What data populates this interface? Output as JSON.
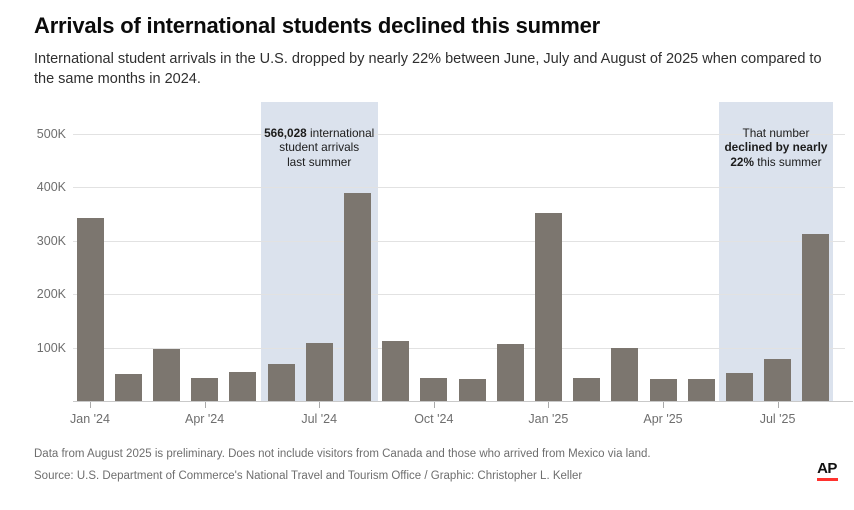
{
  "header": {
    "title": "Arrivals of international students declined this summer",
    "subtitle": "International student arrivals in the U.S. dropped by nearly 22% between June, July and August of 2025 when compared to the same months in 2024."
  },
  "chart_data": {
    "type": "bar",
    "title": "Arrivals of international students declined this summer",
    "xlabel": "",
    "ylabel": "International student arrivals",
    "categories": [
      "Jan '24",
      "Feb '24",
      "Mar '24",
      "Apr '24",
      "May '24",
      "Jun '24",
      "Jul '24",
      "Aug '24",
      "Sep '24",
      "Oct '24",
      "Nov '24",
      "Dec '24",
      "Jan '25",
      "Feb '25",
      "Mar '25",
      "Apr '25",
      "May '25",
      "Jun '25",
      "Jul '25",
      "Aug '25"
    ],
    "values": [
      342000,
      50000,
      98000,
      43000,
      55000,
      69000,
      108000,
      389000,
      113000,
      43000,
      41000,
      107000,
      352000,
      43000,
      99000,
      41000,
      42000,
      53000,
      78000,
      312000
    ],
    "ylim": [
      0,
      550000
    ],
    "grid": true,
    "legend": "none",
    "yticks": [
      {
        "value": 100000,
        "label": "100K"
      },
      {
        "value": 200000,
        "label": "200K"
      },
      {
        "value": 300000,
        "label": "300K"
      },
      {
        "value": 400000,
        "label": "400K"
      },
      {
        "value": 500000,
        "label": "500K"
      }
    ],
    "xticks": [
      {
        "index": 0,
        "label": "Jan '24"
      },
      {
        "index": 3,
        "label": "Apr '24"
      },
      {
        "index": 6,
        "label": "Jul '24"
      },
      {
        "index": 9,
        "label": "Oct '24"
      },
      {
        "index": 12,
        "label": "Jan '25"
      },
      {
        "index": 15,
        "label": "Apr '25"
      },
      {
        "index": 18,
        "label": "Jul '25"
      }
    ],
    "highlights": [
      {
        "name": "summer-2024",
        "start_index": 5,
        "end_index": 7,
        "total": "566,028",
        "annotation_lines": [
          [
            {
              "t": "566,028",
              "b": true
            },
            {
              "t": " international",
              "b": false
            }
          ],
          [
            {
              "t": "student arrivals",
              "b": false
            }
          ],
          [
            {
              "t": "last summer",
              "b": false
            }
          ]
        ]
      },
      {
        "name": "summer-2025",
        "start_index": 17,
        "end_index": 19,
        "total": "",
        "annotation_lines": [
          [
            {
              "t": "That number",
              "b": false
            }
          ],
          [
            {
              "t": "declined by nearly",
              "b": true
            }
          ],
          [
            {
              "t": "22%",
              "b": true
            },
            {
              "t": " this summer",
              "b": false
            }
          ]
        ]
      }
    ]
  },
  "colors": {
    "bar": "#7c766f",
    "highlight_band": "#dbe2ed",
    "gridline": "#e2e2e2",
    "baseline": "#c9c9c9",
    "axis_text": "#6e6e6e",
    "annotation_text": "#1c1c1c",
    "ap_red": "#ff322e"
  },
  "footer": {
    "note": "Data from August 2025 is preliminary. Does not include visitors from Canada and those who arrived from Mexico via land.",
    "source": "Source: U.S. Department of Commerce's National Travel and Tourism Office / Graphic: Christopher L. Keller",
    "logo_text": "AP"
  }
}
